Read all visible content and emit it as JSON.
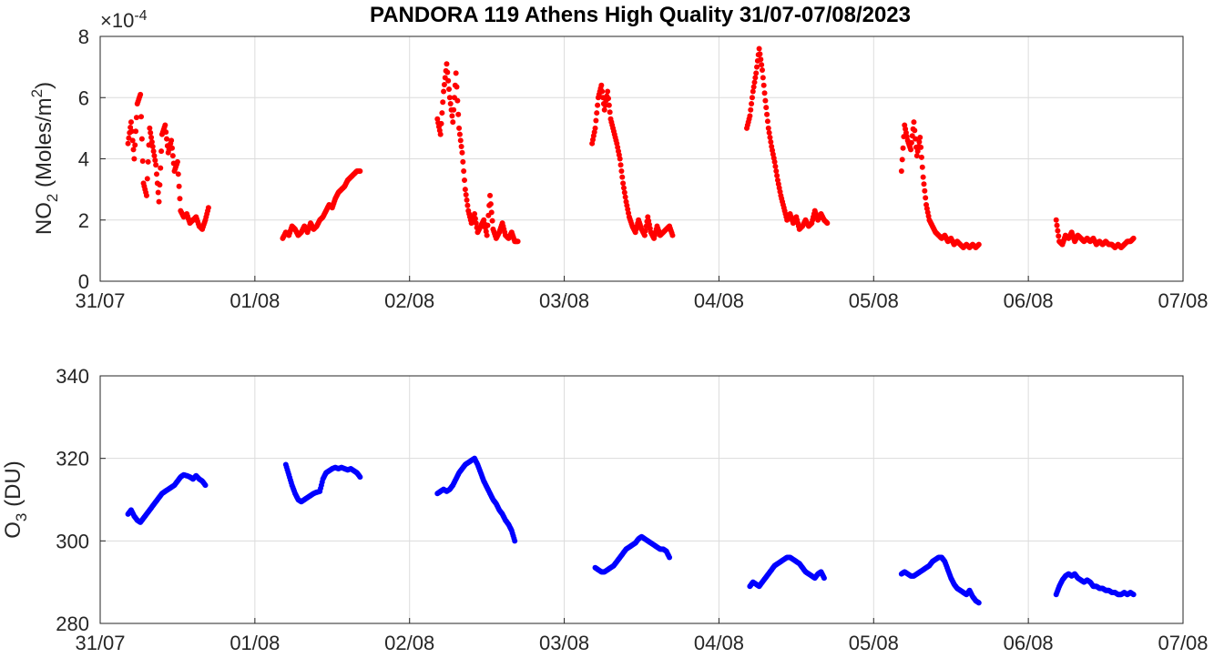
{
  "figure": {
    "title": "PANDORA 119 Athens High Quality 31/07-07/08/2023"
  },
  "chart_data": [
    {
      "type": "scatter",
      "title": "PANDORA 119 Athens High Quality 31/07-07/08/2023",
      "ylabel": "NO2 (Moles/m2)",
      "ylabel_parts": {
        "a": "NO",
        "sub": "2",
        "b": " (Moles/m",
        "sup": "2",
        "c": ")"
      },
      "exponent_label": {
        "prefix": "×10",
        "power": "-4"
      },
      "y_scale_note": "values shown in units of 1e-4 mol/m²",
      "ylim": [
        0,
        8
      ],
      "yticks": [
        0,
        2,
        4,
        6,
        8
      ],
      "xlim": [
        0,
        7
      ],
      "xticks": [
        0,
        1,
        2,
        3,
        4,
        5,
        6,
        7
      ],
      "xtick_labels": [
        "31/07",
        "01/08",
        "02/08",
        "03/08",
        "04/08",
        "05/08",
        "06/08",
        "07/08"
      ],
      "x_units": "days since 31/07/2023 00:00",
      "grid": true,
      "color": "#ff0000",
      "series": [
        {
          "day": "31/07",
          "x": [
            0.18,
            0.2,
            0.22,
            0.24,
            0.26,
            0.28,
            0.3,
            0.32,
            0.34,
            0.36,
            0.38,
            0.4,
            0.42,
            0.44,
            0.46,
            0.48,
            0.5,
            0.52,
            0.54,
            0.56,
            0.58,
            0.6,
            0.62,
            0.64,
            0.66,
            0.68,
            0.7
          ],
          "y": [
            4.5,
            5.2,
            4.0,
            5.8,
            6.1,
            3.2,
            2.8,
            5.0,
            4.4,
            3.8,
            2.6,
            4.8,
            5.1,
            4.2,
            4.6,
            3.6,
            3.9,
            2.3,
            2.1,
            2.2,
            1.9,
            2.0,
            2.1,
            1.8,
            1.7,
            2.0,
            2.4
          ]
        },
        {
          "day": "01/08",
          "x": [
            0.18,
            0.2,
            0.22,
            0.24,
            0.26,
            0.28,
            0.3,
            0.32,
            0.34,
            0.36,
            0.38,
            0.4,
            0.42,
            0.44,
            0.46,
            0.48,
            0.5,
            0.52,
            0.54,
            0.56,
            0.58,
            0.6,
            0.62,
            0.64,
            0.66,
            0.68
          ],
          "y": [
            1.4,
            1.6,
            1.5,
            1.8,
            1.7,
            1.5,
            1.6,
            1.8,
            1.6,
            1.9,
            1.7,
            1.8,
            2.0,
            2.1,
            2.3,
            2.5,
            2.4,
            2.7,
            2.9,
            3.0,
            3.1,
            3.3,
            3.4,
            3.5,
            3.6,
            3.6
          ]
        },
        {
          "day": "02/08",
          "x": [
            0.18,
            0.2,
            0.22,
            0.24,
            0.26,
            0.28,
            0.3,
            0.32,
            0.34,
            0.36,
            0.38,
            0.4,
            0.42,
            0.44,
            0.46,
            0.48,
            0.5,
            0.52,
            0.54,
            0.56,
            0.58,
            0.6,
            0.62,
            0.64,
            0.66,
            0.68,
            0.7
          ],
          "y": [
            5.3,
            4.8,
            6.2,
            7.1,
            6.0,
            5.2,
            6.8,
            5.0,
            4.2,
            3.0,
            2.3,
            1.9,
            2.2,
            1.6,
            1.8,
            2.0,
            1.5,
            2.8,
            1.7,
            1.4,
            1.6,
            1.9,
            1.5,
            1.4,
            1.6,
            1.3,
            1.3
          ]
        },
        {
          "day": "03/08",
          "x": [
            0.18,
            0.2,
            0.22,
            0.24,
            0.26,
            0.28,
            0.3,
            0.32,
            0.34,
            0.36,
            0.38,
            0.4,
            0.42,
            0.44,
            0.46,
            0.48,
            0.5,
            0.52,
            0.54,
            0.56,
            0.58,
            0.6,
            0.62,
            0.64,
            0.66,
            0.68,
            0.7
          ],
          "y": [
            4.5,
            5.0,
            6.0,
            6.4,
            5.6,
            6.2,
            5.3,
            4.9,
            4.5,
            4.0,
            3.2,
            2.6,
            2.1,
            1.8,
            1.6,
            2.0,
            1.7,
            1.5,
            2.1,
            1.6,
            1.4,
            1.8,
            1.5,
            1.6,
            1.7,
            1.8,
            1.5
          ]
        },
        {
          "day": "04/08",
          "x": [
            0.18,
            0.2,
            0.22,
            0.24,
            0.26,
            0.28,
            0.3,
            0.32,
            0.34,
            0.36,
            0.38,
            0.4,
            0.42,
            0.44,
            0.46,
            0.48,
            0.5,
            0.52,
            0.54,
            0.56,
            0.58,
            0.6,
            0.62,
            0.64,
            0.66,
            0.68,
            0.7
          ],
          "y": [
            5.0,
            5.4,
            6.2,
            6.8,
            7.6,
            6.9,
            5.9,
            5.0,
            4.4,
            3.9,
            3.3,
            2.8,
            2.4,
            2.0,
            2.2,
            1.9,
            2.1,
            1.7,
            1.8,
            2.0,
            1.8,
            1.9,
            2.3,
            2.0,
            2.2,
            2.0,
            1.9
          ]
        },
        {
          "day": "05/08",
          "x": [
            0.18,
            0.2,
            0.22,
            0.24,
            0.26,
            0.28,
            0.3,
            0.32,
            0.34,
            0.36,
            0.38,
            0.4,
            0.42,
            0.44,
            0.46,
            0.48,
            0.5,
            0.52,
            0.54,
            0.56,
            0.58,
            0.6,
            0.62,
            0.64,
            0.66,
            0.68
          ],
          "y": [
            3.6,
            5.1,
            4.6,
            4.3,
            5.2,
            4.1,
            4.7,
            3.4,
            2.5,
            2.0,
            1.8,
            1.6,
            1.5,
            1.4,
            1.5,
            1.3,
            1.4,
            1.2,
            1.3,
            1.2,
            1.1,
            1.2,
            1.1,
            1.2,
            1.1,
            1.2
          ]
        },
        {
          "day": "06/08",
          "x": [
            0.18,
            0.2,
            0.22,
            0.24,
            0.26,
            0.28,
            0.3,
            0.32,
            0.34,
            0.36,
            0.38,
            0.4,
            0.42,
            0.44,
            0.46,
            0.48,
            0.5,
            0.52,
            0.54,
            0.56,
            0.58,
            0.6,
            0.62,
            0.64,
            0.66,
            0.68
          ],
          "y": [
            2.0,
            1.3,
            1.2,
            1.5,
            1.4,
            1.6,
            1.3,
            1.5,
            1.4,
            1.3,
            1.4,
            1.3,
            1.4,
            1.2,
            1.3,
            1.2,
            1.3,
            1.2,
            1.2,
            1.1,
            1.2,
            1.1,
            1.2,
            1.3,
            1.3,
            1.4
          ]
        }
      ]
    },
    {
      "type": "scatter",
      "ylabel": "O3 (DU)",
      "ylabel_parts": {
        "a": "O",
        "sub": "3",
        "b": " (DU)"
      },
      "ylim": [
        280,
        340
      ],
      "yticks": [
        280,
        300,
        320,
        340
      ],
      "xlim": [
        0,
        7
      ],
      "xticks": [
        0,
        1,
        2,
        3,
        4,
        5,
        6,
        7
      ],
      "xtick_labels": [
        "31/07",
        "01/08",
        "02/08",
        "03/08",
        "04/08",
        "05/08",
        "06/08",
        "07/08"
      ],
      "x_units": "days since 31/07/2023 00:00",
      "grid": true,
      "color": "#0000ff",
      "series": [
        {
          "day": "31/07",
          "x": [
            0.18,
            0.2,
            0.22,
            0.24,
            0.26,
            0.28,
            0.3,
            0.32,
            0.34,
            0.36,
            0.38,
            0.4,
            0.42,
            0.44,
            0.46,
            0.48,
            0.5,
            0.52,
            0.54,
            0.56,
            0.58,
            0.6,
            0.62,
            0.64,
            0.66,
            0.68
          ],
          "y": [
            306.5,
            307.5,
            306.0,
            305.0,
            304.5,
            305.5,
            306.5,
            307.5,
            308.5,
            309.5,
            310.5,
            311.5,
            312.0,
            312.5,
            313.0,
            313.5,
            314.5,
            315.5,
            316.0,
            315.8,
            315.5,
            315.0,
            315.8,
            315.0,
            314.5,
            313.5
          ]
        },
        {
          "day": "01/08",
          "x": [
            0.2,
            0.22,
            0.24,
            0.26,
            0.28,
            0.3,
            0.32,
            0.34,
            0.36,
            0.38,
            0.4,
            0.42,
            0.44,
            0.46,
            0.48,
            0.5,
            0.52,
            0.54,
            0.56,
            0.58,
            0.6,
            0.62,
            0.64,
            0.66,
            0.68
          ],
          "y": [
            318.5,
            316.0,
            313.5,
            311.5,
            310.0,
            309.5,
            310.0,
            310.5,
            311.0,
            311.5,
            311.8,
            312.0,
            315.0,
            316.5,
            317.0,
            317.5,
            317.8,
            317.5,
            317.8,
            317.5,
            317.2,
            317.5,
            317.0,
            316.5,
            315.5
          ]
        },
        {
          "day": "02/08",
          "x": [
            0.18,
            0.2,
            0.22,
            0.24,
            0.26,
            0.28,
            0.3,
            0.32,
            0.34,
            0.36,
            0.38,
            0.4,
            0.42,
            0.44,
            0.46,
            0.48,
            0.5,
            0.52,
            0.54,
            0.56,
            0.58,
            0.6,
            0.62,
            0.64,
            0.66,
            0.68
          ],
          "y": [
            311.5,
            312.0,
            312.5,
            312.0,
            312.5,
            313.5,
            315.0,
            316.5,
            317.5,
            318.5,
            319.0,
            319.5,
            320.0,
            318.5,
            316.5,
            314.5,
            313.0,
            311.5,
            310.0,
            309.0,
            307.5,
            306.5,
            305.0,
            304.0,
            302.5,
            300.0
          ]
        },
        {
          "day": "03/08",
          "x": [
            0.2,
            0.22,
            0.24,
            0.26,
            0.28,
            0.3,
            0.32,
            0.34,
            0.36,
            0.38,
            0.4,
            0.42,
            0.44,
            0.46,
            0.48,
            0.5,
            0.52,
            0.54,
            0.56,
            0.58,
            0.6,
            0.62,
            0.64,
            0.66,
            0.68
          ],
          "y": [
            293.5,
            293.0,
            292.5,
            292.5,
            293.0,
            293.5,
            294.0,
            295.0,
            296.0,
            297.0,
            298.0,
            298.5,
            299.0,
            299.5,
            300.5,
            301.0,
            300.5,
            300.0,
            299.5,
            299.0,
            298.5,
            298.0,
            298.0,
            297.5,
            296.0
          ]
        },
        {
          "day": "04/08",
          "x": [
            0.2,
            0.22,
            0.24,
            0.26,
            0.28,
            0.3,
            0.32,
            0.34,
            0.36,
            0.38,
            0.4,
            0.42,
            0.44,
            0.46,
            0.48,
            0.5,
            0.52,
            0.54,
            0.56,
            0.58,
            0.6,
            0.62,
            0.64,
            0.66,
            0.68
          ],
          "y": [
            289.0,
            290.0,
            289.5,
            289.0,
            290.0,
            291.0,
            292.0,
            293.0,
            294.0,
            294.5,
            295.0,
            295.5,
            296.0,
            296.0,
            295.5,
            295.0,
            294.5,
            293.5,
            292.5,
            292.0,
            291.5,
            291.0,
            292.0,
            292.5,
            291.0
          ]
        },
        {
          "day": "05/08",
          "x": [
            0.18,
            0.2,
            0.22,
            0.24,
            0.26,
            0.28,
            0.3,
            0.32,
            0.34,
            0.36,
            0.38,
            0.4,
            0.42,
            0.44,
            0.46,
            0.48,
            0.5,
            0.52,
            0.54,
            0.56,
            0.58,
            0.6,
            0.62,
            0.64,
            0.66,
            0.68
          ],
          "y": [
            292.0,
            292.5,
            292.0,
            291.5,
            291.5,
            292.0,
            292.5,
            293.0,
            293.5,
            294.0,
            295.0,
            295.5,
            296.0,
            296.0,
            295.0,
            293.0,
            291.0,
            289.5,
            288.5,
            288.0,
            287.5,
            287.0,
            288.0,
            286.5,
            285.5,
            285.0
          ]
        },
        {
          "day": "06/08",
          "x": [
            0.18,
            0.2,
            0.22,
            0.24,
            0.26,
            0.28,
            0.3,
            0.32,
            0.34,
            0.36,
            0.38,
            0.4,
            0.42,
            0.44,
            0.46,
            0.48,
            0.5,
            0.52,
            0.54,
            0.56,
            0.58,
            0.6,
            0.62,
            0.64,
            0.66,
            0.68
          ],
          "y": [
            287.0,
            289.0,
            290.5,
            291.5,
            292.0,
            291.5,
            292.0,
            291.0,
            290.5,
            290.0,
            290.5,
            290.0,
            289.0,
            289.0,
            288.5,
            288.5,
            288.0,
            288.0,
            287.5,
            287.5,
            287.0,
            287.0,
            287.5,
            287.0,
            287.5,
            287.0
          ]
        }
      ]
    }
  ]
}
